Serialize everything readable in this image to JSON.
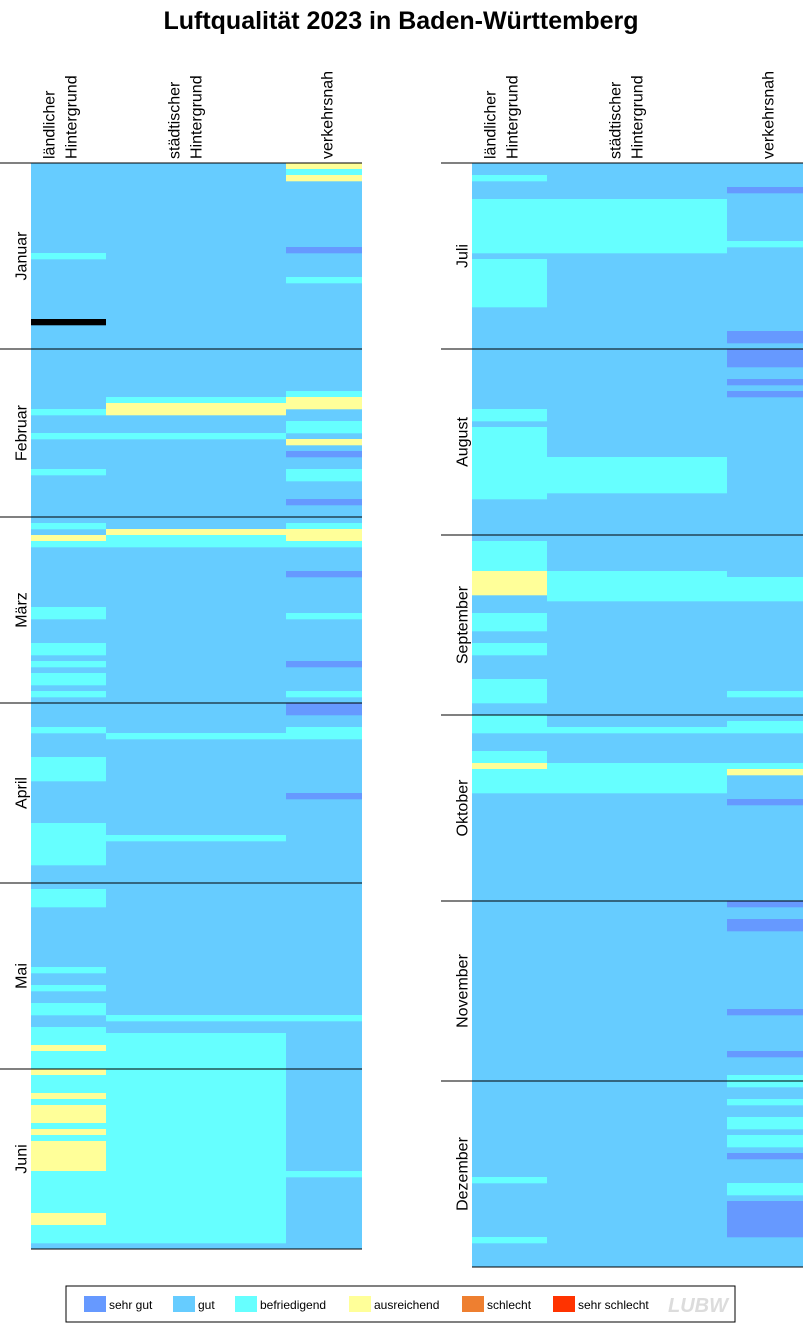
{
  "chart_data": {
    "type": "heatmap",
    "title": "Luftqualität 2023 in Baden-Württemberg",
    "columns": [
      [
        "ländlicher",
        "Hintergrund"
      ],
      [
        "städtischer",
        "Hintergrund"
      ],
      [
        "verkehrsnah"
      ]
    ],
    "legend": [
      {
        "label": "sehr gut",
        "color": "#6699ff"
      },
      {
        "label": "gut",
        "color": "#66ccff"
      },
      {
        "label": "befriedigend",
        "color": "#66ffff"
      },
      {
        "label": "ausreichend",
        "color": "#ffff99"
      },
      {
        "label": "schlecht",
        "color": "#ee7f30"
      },
      {
        "label": "sehr schlecht",
        "color": "#ff3300"
      }
    ],
    "logo": "LUBW",
    "months": [
      {
        "name": "Januar",
        "days": 31,
        "cols": [
          [
            [
              15,
              2
            ],
            [
              26,
              6
            ]
          ],
          [],
          [
            [
              0,
              3
            ],
            [
              1,
              2
            ],
            [
              2,
              3
            ],
            [
              14,
              0
            ],
            [
              19,
              2
            ]
          ]
        ]
      },
      {
        "name": "Februar",
        "days": 28,
        "cols": [
          [
            [
              10,
              2
            ],
            [
              14,
              2
            ],
            [
              20,
              2
            ]
          ],
          [
            [
              8,
              2
            ],
            [
              9,
              3
            ],
            [
              10,
              3
            ],
            [
              14,
              2
            ]
          ],
          [
            [
              7,
              2
            ],
            [
              8,
              3
            ],
            [
              9,
              3
            ],
            [
              12,
              2
            ],
            [
              13,
              2
            ],
            [
              15,
              3
            ],
            [
              17,
              0
            ],
            [
              20,
              2
            ],
            [
              21,
              2
            ],
            [
              25,
              0
            ]
          ]
        ]
      },
      {
        "name": "März",
        "days": 31,
        "cols": [
          [
            [
              1,
              2
            ],
            [
              3,
              3
            ],
            [
              4,
              2
            ],
            [
              15,
              2
            ],
            [
              16,
              2
            ],
            [
              21,
              2
            ],
            [
              22,
              2
            ],
            [
              24,
              2
            ],
            [
              26,
              2
            ],
            [
              27,
              2
            ],
            [
              29,
              2
            ]
          ],
          [
            [
              2,
              3
            ],
            [
              3,
              2
            ],
            [
              4,
              2
            ]
          ],
          [
            [
              1,
              2
            ],
            [
              2,
              3
            ],
            [
              3,
              3
            ],
            [
              4,
              2
            ],
            [
              9,
              0
            ],
            [
              16,
              2
            ],
            [
              24,
              0
            ],
            [
              29,
              2
            ],
            [
              31,
              0
            ]
          ]
        ]
      },
      {
        "name": "April",
        "days": 30,
        "cols": [
          [
            [
              4,
              2
            ],
            [
              9,
              2
            ],
            [
              10,
              2
            ],
            [
              11,
              2
            ],
            [
              12,
              2
            ],
            [
              20,
              2
            ],
            [
              21,
              2
            ],
            [
              22,
              2
            ],
            [
              23,
              2
            ],
            [
              24,
              2
            ],
            [
              25,
              2
            ],
            [
              26,
              2
            ]
          ],
          [
            [
              5,
              2
            ],
            [
              22,
              2
            ]
          ],
          [
            [
              0,
              0
            ],
            [
              1,
              0
            ],
            [
              4,
              2
            ],
            [
              5,
              2
            ],
            [
              15,
              0
            ]
          ]
        ]
      },
      {
        "name": "Mai",
        "days": 31,
        "cols": [
          [
            [
              1,
              2
            ],
            [
              2,
              2
            ],
            [
              3,
              2
            ],
            [
              14,
              2
            ],
            [
              17,
              2
            ],
            [
              20,
              2
            ],
            [
              21,
              2
            ],
            [
              24,
              2
            ],
            [
              25,
              2
            ],
            [
              26,
              2
            ],
            [
              27,
              3
            ],
            [
              28,
              2
            ],
            [
              29,
              2
            ],
            [
              30,
              2
            ]
          ],
          [
            [
              22,
              2
            ],
            [
              25,
              2
            ],
            [
              26,
              2
            ],
            [
              27,
              2
            ],
            [
              28,
              2
            ],
            [
              29,
              2
            ],
            [
              30,
              2
            ]
          ],
          [
            [
              22,
              2
            ]
          ]
        ]
      },
      {
        "name": "Juni",
        "days": 30,
        "cols": [
          [
            [
              0,
              3
            ],
            [
              1,
              2
            ],
            [
              2,
              2
            ],
            [
              3,
              2
            ],
            [
              4,
              3
            ],
            [
              5,
              2
            ],
            [
              6,
              3
            ],
            [
              7,
              3
            ],
            [
              8,
              3
            ],
            [
              9,
              2
            ],
            [
              10,
              3
            ],
            [
              11,
              2
            ],
            [
              12,
              3
            ],
            [
              13,
              3
            ],
            [
              14,
              3
            ],
            [
              15,
              3
            ],
            [
              16,
              3
            ],
            [
              17,
              2
            ],
            [
              18,
              2
            ],
            [
              19,
              2
            ],
            [
              20,
              2
            ],
            [
              21,
              2
            ],
            [
              22,
              2
            ],
            [
              23,
              2
            ],
            [
              24,
              3
            ],
            [
              25,
              3
            ],
            [
              26,
              2
            ],
            [
              27,
              2
            ],
            [
              28,
              2
            ]
          ],
          [
            [
              0,
              2
            ],
            [
              1,
              2
            ],
            [
              2,
              2
            ],
            [
              3,
              2
            ],
            [
              4,
              2
            ],
            [
              5,
              2
            ],
            [
              6,
              2
            ],
            [
              7,
              2
            ],
            [
              8,
              2
            ],
            [
              9,
              2
            ],
            [
              10,
              2
            ],
            [
              11,
              2
            ],
            [
              12,
              2
            ],
            [
              13,
              2
            ],
            [
              14,
              2
            ],
            [
              15,
              2
            ],
            [
              16,
              2
            ],
            [
              17,
              2
            ],
            [
              18,
              2
            ],
            [
              19,
              2
            ],
            [
              20,
              2
            ],
            [
              21,
              2
            ],
            [
              22,
              2
            ],
            [
              23,
              2
            ],
            [
              24,
              2
            ],
            [
              25,
              2
            ],
            [
              26,
              2
            ],
            [
              27,
              2
            ],
            [
              28,
              2
            ]
          ],
          [
            [
              17,
              2
            ]
          ]
        ]
      },
      {
        "name": "Juli",
        "days": 31,
        "cols": [
          [
            [
              2,
              2
            ],
            [
              6,
              2
            ],
            [
              7,
              2
            ],
            [
              8,
              2
            ],
            [
              9,
              2
            ],
            [
              10,
              2
            ],
            [
              11,
              2
            ],
            [
              12,
              2
            ],
            [
              13,
              2
            ],
            [
              14,
              2
            ],
            [
              16,
              2
            ],
            [
              17,
              2
            ],
            [
              18,
              2
            ],
            [
              19,
              2
            ],
            [
              20,
              2
            ],
            [
              21,
              2
            ],
            [
              22,
              2
            ],
            [
              23,
              2
            ]
          ],
          [
            [
              6,
              2
            ],
            [
              7,
              2
            ],
            [
              8,
              2
            ],
            [
              9,
              2
            ],
            [
              10,
              2
            ],
            [
              11,
              2
            ],
            [
              12,
              2
            ],
            [
              13,
              2
            ],
            [
              14,
              2
            ]
          ],
          [
            [
              4,
              0
            ],
            [
              13,
              2
            ],
            [
              28,
              0
            ],
            [
              29,
              0
            ]
          ]
        ]
      },
      {
        "name": "August",
        "days": 31,
        "cols": [
          [
            [
              10,
              2
            ],
            [
              11,
              2
            ],
            [
              13,
              2
            ],
            [
              14,
              2
            ],
            [
              15,
              2
            ],
            [
              16,
              2
            ],
            [
              17,
              2
            ],
            [
              18,
              2
            ],
            [
              19,
              2
            ],
            [
              20,
              2
            ],
            [
              21,
              2
            ],
            [
              22,
              2
            ],
            [
              23,
              2
            ],
            [
              24,
              2
            ]
          ],
          [
            [
              18,
              2
            ],
            [
              19,
              2
            ],
            [
              20,
              2
            ],
            [
              21,
              2
            ],
            [
              22,
              2
            ],
            [
              23,
              2
            ]
          ],
          [
            [
              0,
              0
            ],
            [
              1,
              0
            ],
            [
              2,
              0
            ],
            [
              5,
              0
            ],
            [
              7,
              0
            ]
          ]
        ]
      },
      {
        "name": "September",
        "days": 30,
        "cols": [
          [
            [
              1,
              2
            ],
            [
              2,
              2
            ],
            [
              3,
              2
            ],
            [
              4,
              2
            ],
            [
              5,
              2
            ],
            [
              6,
              3
            ],
            [
              7,
              3
            ],
            [
              8,
              3
            ],
            [
              9,
              3
            ],
            [
              13,
              2
            ],
            [
              14,
              2
            ],
            [
              15,
              2
            ],
            [
              18,
              2
            ],
            [
              19,
              2
            ],
            [
              24,
              2
            ],
            [
              25,
              2
            ],
            [
              26,
              2
            ],
            [
              27,
              2
            ]
          ],
          [
            [
              6,
              2
            ],
            [
              7,
              2
            ],
            [
              8,
              2
            ],
            [
              9,
              2
            ],
            [
              10,
              2
            ]
          ],
          [
            [
              7,
              2
            ],
            [
              8,
              2
            ],
            [
              9,
              2
            ],
            [
              10,
              2
            ],
            [
              26,
              2
            ]
          ]
        ]
      },
      {
        "name": "Oktober",
        "days": 31,
        "cols": [
          [
            [
              0,
              2
            ],
            [
              1,
              2
            ],
            [
              2,
              2
            ],
            [
              6,
              2
            ],
            [
              7,
              2
            ],
            [
              8,
              3
            ],
            [
              9,
              2
            ],
            [
              10,
              2
            ],
            [
              11,
              2
            ],
            [
              12,
              2
            ]
          ],
          [
            [
              2,
              2
            ],
            [
              8,
              2
            ],
            [
              9,
              2
            ],
            [
              10,
              2
            ],
            [
              11,
              2
            ],
            [
              12,
              2
            ]
          ],
          [
            [
              1,
              2
            ],
            [
              2,
              2
            ],
            [
              8,
              2
            ],
            [
              9,
              3
            ],
            [
              14,
              0
            ]
          ]
        ]
      },
      {
        "name": "November",
        "days": 30,
        "cols": [
          [],
          [],
          [
            [
              0,
              0
            ],
            [
              3,
              0
            ],
            [
              4,
              0
            ],
            [
              18,
              0
            ],
            [
              25,
              0
            ],
            [
              29,
              2
            ]
          ]
        ]
      },
      {
        "name": "Dezember",
        "days": 31,
        "cols": [
          [
            [
              16,
              2
            ],
            [
              26,
              2
            ]
          ],
          [],
          [
            [
              0,
              2
            ],
            [
              3,
              2
            ],
            [
              6,
              2
            ],
            [
              7,
              2
            ],
            [
              9,
              2
            ],
            [
              10,
              2
            ],
            [
              12,
              0
            ],
            [
              17,
              2
            ],
            [
              18,
              2
            ],
            [
              20,
              0
            ],
            [
              21,
              0
            ],
            [
              22,
              0
            ],
            [
              23,
              0
            ],
            [
              24,
              0
            ],
            [
              25,
              0
            ]
          ]
        ]
      }
    ]
  }
}
